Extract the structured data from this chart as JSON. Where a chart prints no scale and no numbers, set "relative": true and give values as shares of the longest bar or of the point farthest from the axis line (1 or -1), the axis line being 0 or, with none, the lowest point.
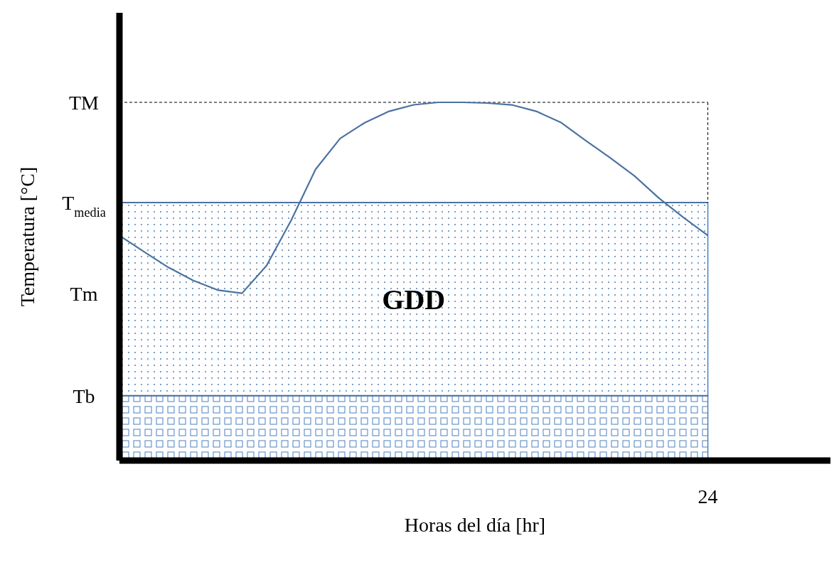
{
  "chart_data": {
    "type": "line",
    "relative": true,
    "xlabel": "Horas del día [hr]",
    "ylabel": "Temperatura [°C]",
    "categories": [
      null,
      null,
      null,
      null,
      null,
      null,
      null,
      null,
      null,
      null,
      null,
      null,
      null,
      null,
      null,
      null,
      null,
      null,
      null,
      null,
      null,
      null,
      null,
      null,
      null,
      null,
      null,
      null,
      null,
      null
    ],
    "series": [
      {
        "color": "#4a72a0",
        "values": [
          0.628,
          0.583,
          0.539,
          0.503,
          0.476,
          0.467,
          0.544,
          0.67,
          0.813,
          0.899,
          0.943,
          0.975,
          0.993,
          1,
          1,
          0.998,
          0.993,
          0.975,
          0.944,
          0.894,
          0.846,
          0.795,
          0.733,
          0.679,
          0.628,
          null,
          null,
          null,
          null,
          null
        ]
      }
    ],
    "ref_lines": [
      {
        "axis": "y",
        "value": 1,
        "label": "TM",
        "color": "#000000",
        "line_style": "dashed"
      },
      {
        "axis": "y",
        "value": 0.72,
        "label": "T$_{media}$",
        "color": "#4a72a0",
        "line_style": "solid"
      },
      {
        "axis": "y",
        "value": 0.181,
        "label": "Tb",
        "color": "#4a72a0",
        "line_style": "solid"
      }
    ],
    "bands": [
      {
        "axis": "y",
        "from": 0.181,
        "to": 0.72,
        "label": "GDD",
        "color": "#4a7fc0"
      },
      {
        "axis": "y",
        "from": 0,
        "to": 0.181,
        "color": "#4a7fc0"
      }
    ],
    "annotations": [
      "Tm",
      "24"
    ]
  }
}
